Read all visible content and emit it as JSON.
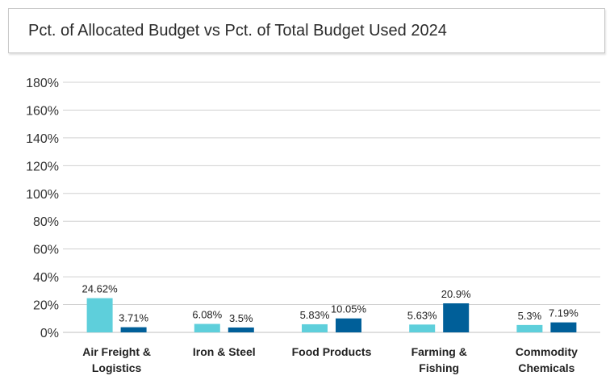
{
  "title": "Pct. of Allocated Budget vs Pct. of Total Budget Used 2024",
  "colors": {
    "series1": "#5ecfdb",
    "series2": "#005f99",
    "grid": "#d0d0d0",
    "text": "#333333"
  },
  "chart_data": {
    "type": "bar",
    "title": "Pct. of Allocated Budget vs Pct. of Total Budget Used 2024",
    "categories": [
      [
        "Air Freight &",
        "Logistics"
      ],
      [
        "Iron & Steel"
      ],
      [
        "Food Products"
      ],
      [
        "Farming &",
        "Fishing"
      ],
      [
        "Commodity",
        "Chemicals"
      ]
    ],
    "series": [
      {
        "values": [
          24.62,
          6.08,
          5.83,
          5.63,
          5.3
        ],
        "labels": [
          "24.62%",
          "6.08%",
          "5.83%",
          "5.63%",
          "5.3%"
        ]
      },
      {
        "values": [
          3.71,
          3.5,
          10.05,
          20.9,
          7.19
        ],
        "labels": [
          "3.71%",
          "3.5%",
          "10.05%",
          "20.9%",
          "7.19%"
        ]
      }
    ],
    "yticks": [
      "0%",
      "20%",
      "40%",
      "60%",
      "80%",
      "100%",
      "120%",
      "140%",
      "160%",
      "180%"
    ],
    "ylim": [
      0,
      180
    ],
    "grid": true,
    "legend": "none"
  }
}
